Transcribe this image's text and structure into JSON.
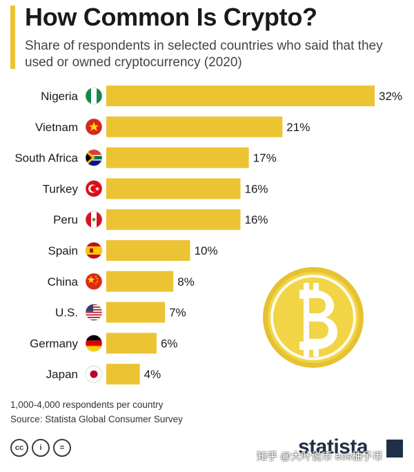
{
  "header": {
    "title": "How Common Is Crypto?",
    "subtitle": "Share of respondents in selected countries who said that they used or owned cryptocurrency (2020)"
  },
  "chart_data": {
    "type": "bar",
    "orientation": "horizontal",
    "categories": [
      "Nigeria",
      "Vietnam",
      "South Africa",
      "Turkey",
      "Peru",
      "Spain",
      "China",
      "U.S.",
      "Germany",
      "Japan"
    ],
    "values": [
      32,
      21,
      17,
      16,
      16,
      10,
      8,
      7,
      6,
      4
    ],
    "value_labels": [
      "32%",
      "21%",
      "17%",
      "16%",
      "16%",
      "10%",
      "8%",
      "7%",
      "6%",
      "4%"
    ],
    "unit": "%",
    "xlim": [
      0,
      32
    ],
    "grid": false,
    "bar_color": "#ecc433",
    "flag_icons": [
      "nigeria-flag-icon",
      "vietnam-flag-icon",
      "south-africa-flag-icon",
      "turkey-flag-icon",
      "peru-flag-icon",
      "spain-flag-icon",
      "china-flag-icon",
      "us-flag-icon",
      "germany-flag-icon",
      "japan-flag-icon"
    ]
  },
  "decoration": {
    "icon": "bitcoin-coin-icon",
    "color": "#f1d547"
  },
  "footer": {
    "note": "1,000-4,000 respondents per country",
    "source": "Source: Statista Global Consumer Survey",
    "license_icons": [
      "cc-icon",
      "attribution-icon",
      "no-derivatives-icon"
    ],
    "license_glyphs": [
      "cc",
      "i",
      "="
    ],
    "brand": "statista",
    "watermark": "知乎 @大叶说币 eos柚子币"
  }
}
